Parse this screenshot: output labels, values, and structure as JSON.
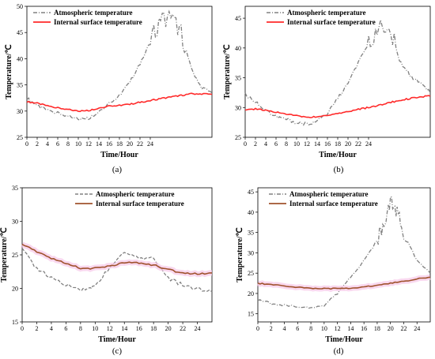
{
  "chart_data": [
    {
      "type": "line",
      "panel_label": "(a)",
      "xlabel": "Time/Hour",
      "ylabel": "Temperature/℃",
      "xticks": [
        "0",
        "2",
        "4",
        "6",
        "8",
        "10",
        "12",
        "14",
        "16",
        "18",
        "20",
        "22",
        "24"
      ],
      "yticks": [
        "25",
        "30",
        "35",
        "40",
        "45",
        "50"
      ],
      "xlim": [
        0,
        36
      ],
      "ylim": [
        25,
        50
      ],
      "legend_position": "top-left",
      "series": [
        {
          "name": "Atmospheric temperature",
          "color": "#808080",
          "style": "dash-dot",
          "x": [
            0,
            2,
            4,
            6,
            8,
            10,
            12,
            14,
            16,
            18,
            20,
            22,
            24,
            26,
            28,
            30,
            32,
            34,
            36
          ],
          "values": [
            32.5,
            31.0,
            30.2,
            29.6,
            29.0,
            28.5,
            28.6,
            30.0,
            31.5,
            33.0,
            35.5,
            39.0,
            43.5,
            47.5,
            48.0,
            45.0,
            38.0,
            34.5,
            33.5
          ]
        },
        {
          "name": "Internal surface temperature",
          "color": "#ff2a2a",
          "style": "solid",
          "x": [
            0,
            2,
            4,
            6,
            8,
            10,
            12,
            14,
            16,
            18,
            20,
            22,
            24,
            26,
            28,
            30,
            32,
            34,
            36
          ],
          "values": [
            31.8,
            31.5,
            31.0,
            30.6,
            30.3,
            30.0,
            30.1,
            30.6,
            31.0,
            31.1,
            31.3,
            31.7,
            32.0,
            32.4,
            32.7,
            33.0,
            33.3,
            33.3,
            33.2
          ]
        }
      ]
    },
    {
      "type": "line",
      "panel_label": "(b)",
      "xlabel": "Time/Hour",
      "ylabel": "Temperature/℃",
      "xticks": [
        "0",
        "2",
        "4",
        "6",
        "8",
        "10",
        "12",
        "14",
        "16",
        "18",
        "20",
        "22",
        "24"
      ],
      "yticks": [
        "25",
        "30",
        "35",
        "40",
        "45"
      ],
      "xlim": [
        0,
        36
      ],
      "ylim": [
        25,
        47
      ],
      "legend_position": "top-right",
      "series": [
        {
          "name": "Atmospheric temperature",
          "color": "#808080",
          "style": "dash-dot",
          "x": [
            0,
            2,
            4,
            6,
            8,
            10,
            12,
            14,
            16,
            18,
            20,
            22,
            24,
            26,
            28,
            30,
            32,
            34,
            36
          ],
          "values": [
            32.2,
            31.0,
            29.5,
            28.5,
            28.0,
            27.5,
            27.2,
            27.8,
            29.0,
            31.5,
            34.0,
            37.5,
            40.5,
            44.5,
            43.5,
            38.0,
            35.5,
            34.0,
            32.5
          ]
        },
        {
          "name": "Internal surface temperature",
          "color": "#ff2a2a",
          "style": "solid",
          "x": [
            0,
            2,
            4,
            6,
            8,
            10,
            12,
            14,
            16,
            18,
            20,
            22,
            24,
            26,
            28,
            30,
            32,
            34,
            36
          ],
          "values": [
            29.5,
            29.8,
            29.5,
            29.2,
            28.9,
            28.6,
            28.4,
            28.4,
            28.7,
            29.0,
            29.3,
            29.7,
            30.0,
            30.4,
            30.8,
            31.2,
            31.5,
            31.8,
            31.9
          ]
        }
      ]
    },
    {
      "type": "line",
      "panel_label": "(c)",
      "xlabel": "Time/Hour",
      "ylabel": "Temperature/℃",
      "xticks": [
        "0",
        "2",
        "4",
        "6",
        "8",
        "10",
        "12",
        "14",
        "16",
        "18",
        "20",
        "22",
        "24"
      ],
      "yticks": [
        "15",
        "20",
        "25",
        "30",
        "35"
      ],
      "xlim": [
        0,
        26
      ],
      "ylim": [
        15,
        35
      ],
      "legend_position": "top-right",
      "series": [
        {
          "name": "Atmospheric temperature",
          "color": "#808080",
          "style": "dashed",
          "x": [
            0,
            2,
            4,
            6,
            8,
            9,
            10,
            12,
            14,
            16,
            18,
            20,
            22,
            24,
            26
          ],
          "values": [
            25.8,
            23.0,
            21.5,
            20.5,
            19.8,
            19.8,
            20.5,
            23.0,
            25.5,
            24.5,
            24.5,
            21.5,
            20.5,
            20.0,
            19.5
          ]
        },
        {
          "name": "Internal surface temperature",
          "color": "#a0522d",
          "style": "solid",
          "x": [
            0,
            2,
            4,
            6,
            8,
            10,
            12,
            14,
            16,
            18,
            20,
            22,
            24,
            26
          ],
          "values": [
            26.5,
            25.5,
            24.5,
            23.8,
            23.0,
            23.0,
            23.3,
            23.8,
            23.8,
            23.5,
            22.8,
            22.3,
            22.2,
            22.3
          ]
        }
      ]
    },
    {
      "type": "line",
      "panel_label": "(d)",
      "xlabel": "Time/Hour",
      "ylabel": "Temperature/℃",
      "xticks": [
        "0",
        "2",
        "4",
        "6",
        "8",
        "10",
        "12",
        "14",
        "16",
        "18",
        "20",
        "22",
        "24"
      ],
      "yticks": [
        "15",
        "20",
        "25",
        "30",
        "35",
        "40",
        "45"
      ],
      "xlim": [
        0,
        26
      ],
      "ylim": [
        13,
        46
      ],
      "legend_position": "top-right",
      "series": [
        {
          "name": "Atmospheric temperature",
          "color": "#808080",
          "style": "dash-dot",
          "x": [
            0,
            2,
            4,
            6,
            8,
            10,
            12,
            14,
            16,
            18,
            19,
            20,
            21,
            22,
            24,
            26
          ],
          "values": [
            18.5,
            17.5,
            17.0,
            16.8,
            16.5,
            17.0,
            20.0,
            24.0,
            28.0,
            33.0,
            37.0,
            43.0,
            40.0,
            35.0,
            28.0,
            25.0
          ]
        },
        {
          "name": "Internal surface temperature",
          "color": "#a0522d",
          "style": "solid",
          "x": [
            0,
            2,
            4,
            6,
            8,
            10,
            12,
            14,
            16,
            18,
            20,
            22,
            24,
            26
          ],
          "values": [
            22.5,
            22.2,
            21.8,
            21.5,
            21.3,
            21.2,
            21.2,
            21.3,
            21.6,
            22.0,
            22.5,
            23.0,
            23.6,
            24.0
          ]
        }
      ]
    }
  ]
}
